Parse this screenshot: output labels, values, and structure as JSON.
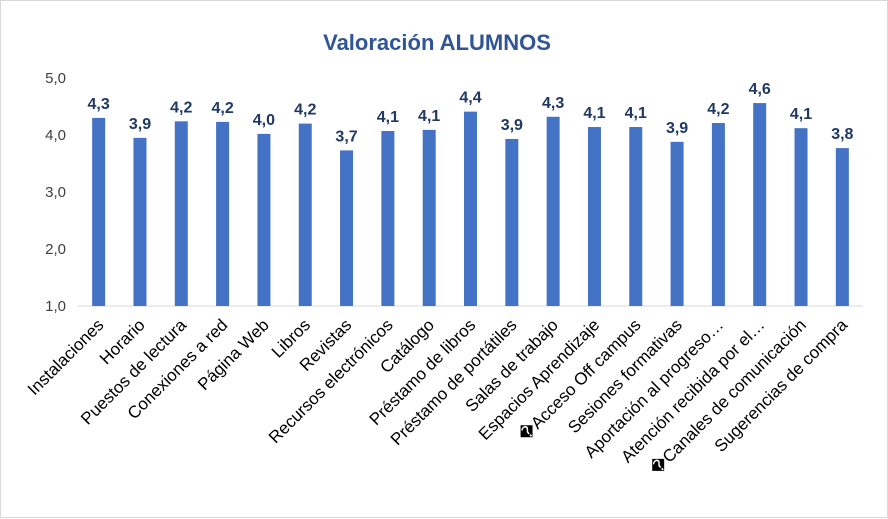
{
  "chart_data": {
    "type": "bar",
    "title": "Valoración ALUMNOS",
    "xlabel": "",
    "ylabel": "",
    "ylim": [
      1.0,
      5.0
    ],
    "yticks": [
      "1,0",
      "2,0",
      "3,0",
      "4,0",
      "5,0"
    ],
    "grid": false,
    "legend": "none",
    "bar_color": "#4472c4",
    "categories": [
      "Instalaciones",
      "Horario",
      "Puestos de lectura",
      "Conexiones a red",
      "Página Web",
      "Libros",
      "Revistas",
      "Recursos electrónicos",
      "Catálogo",
      "Préstamo de libros",
      "Préstamo de portátiles",
      "Salas de trabajo",
      "Espacios Aprendizaje",
      "�Acceso Off campus",
      "Sesiones formativas",
      "Aportación al progreso…",
      "Atención recibida por el…",
      "�Canales de comunicación",
      "Sugerencias de compra"
    ],
    "values": [
      4.3,
      3.95,
      4.24,
      4.23,
      4.02,
      4.2,
      3.73,
      4.07,
      4.09,
      4.41,
      3.93,
      4.32,
      4.14,
      4.14,
      3.88,
      4.21,
      4.56,
      4.12,
      3.77
    ],
    "data_labels": [
      "4,3",
      "3,9",
      "4,2",
      "4,2",
      "4,0",
      "4,2",
      "3,7",
      "4,1",
      "4,1",
      "4,4",
      "3,9",
      "4,3",
      "4,1",
      "4,1",
      "3,9",
      "4,2",
      "4,6",
      "4,1",
      "3,8"
    ]
  }
}
